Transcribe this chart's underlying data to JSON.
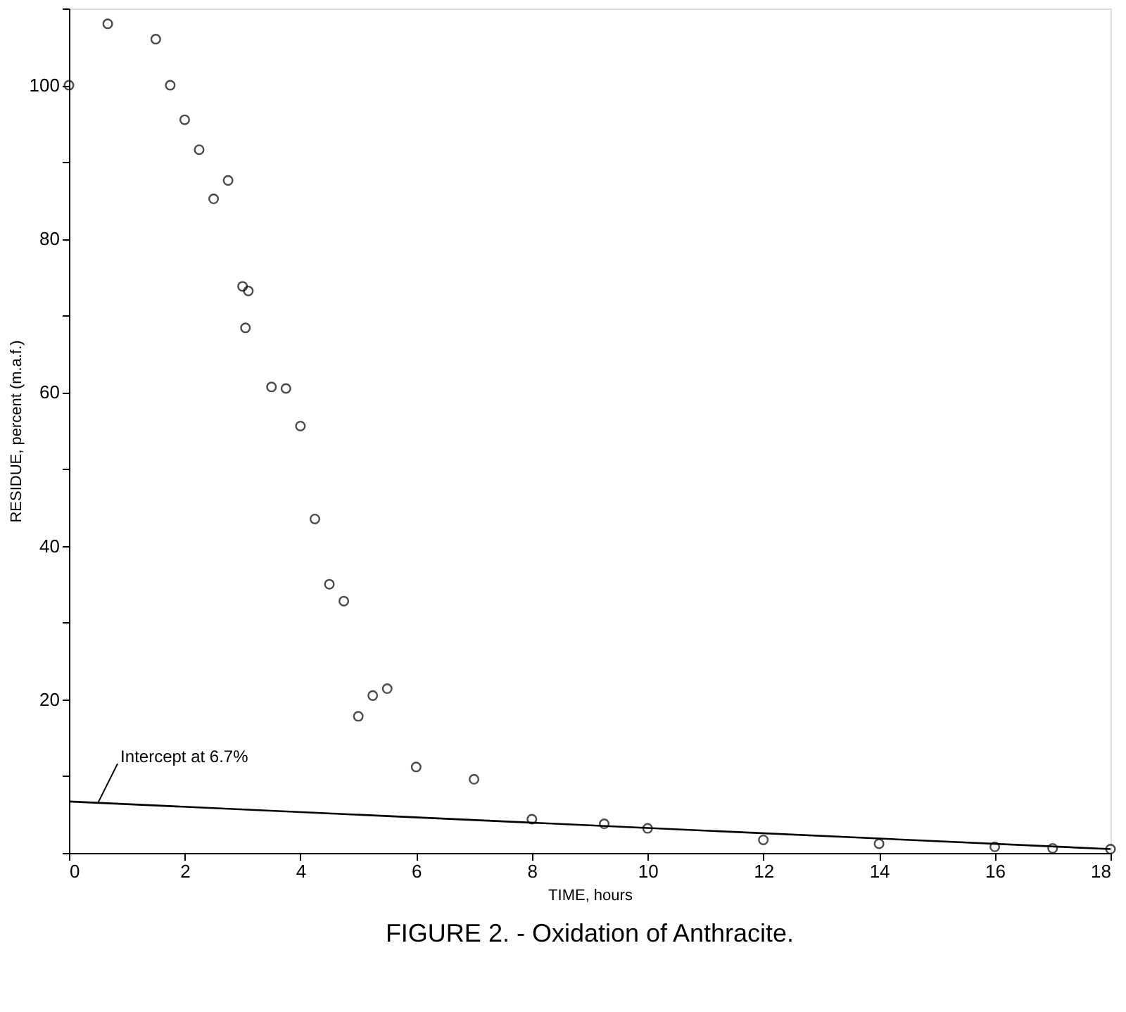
{
  "chart_data": {
    "type": "scatter",
    "title": "FIGURE 2. - Oxidation of Anthracite.",
    "xlabel": "TIME, hours",
    "ylabel": "RESIDUE, percent (m.a.f.)",
    "series": [
      {
        "color": "#000000",
        "marker": "circle",
        "x": [
          0,
          0.67,
          1.5,
          1.75,
          2,
          2.25,
          2.5,
          2.75,
          3,
          3.1,
          3.05,
          3.5,
          3.75,
          4,
          4.25,
          4.5,
          4.75,
          5,
          5.25,
          5.5,
          6,
          7,
          8,
          9.25,
          10,
          12,
          14,
          16,
          17,
          18
        ],
        "values": [
          100,
          108,
          106,
          100,
          95.5,
          91.6,
          85.2,
          87.6,
          73.8,
          73.2,
          68.4,
          60.7,
          60.5,
          55.6,
          43.5,
          35,
          32.8,
          17.8,
          20.5,
          21.4,
          11.2,
          9.6,
          4.4,
          3.8,
          3.2,
          1.7,
          1.2,
          0.8,
          0.6,
          0.5
        ]
      },
      {
        "type": "line",
        "color": "#000000",
        "marker": "none",
        "line_style": "solid",
        "x": [
          0,
          18
        ],
        "values": [
          6.7,
          0.5
        ]
      }
    ],
    "annotations": [
      {
        "text": "Intercept at 6.7%",
        "x": 0.5,
        "y": 6.5
      }
    ],
    "xlim": [
      0,
      18
    ],
    "xticks": [
      0,
      2,
      4,
      6,
      8,
      10,
      12,
      14,
      16,
      18
    ],
    "ylim": [
      0,
      110
    ],
    "yticks": [
      {
        "value": 0,
        "label": null
      },
      {
        "value": 10,
        "label": null
      },
      20,
      {
        "value": 30,
        "label": null
      },
      40,
      {
        "value": 50,
        "label": null
      },
      60,
      {
        "value": 70,
        "label": null
      },
      80,
      {
        "value": 90,
        "label": null
      },
      100,
      {
        "value": 110,
        "label": null
      }
    ],
    "grid": false
  }
}
